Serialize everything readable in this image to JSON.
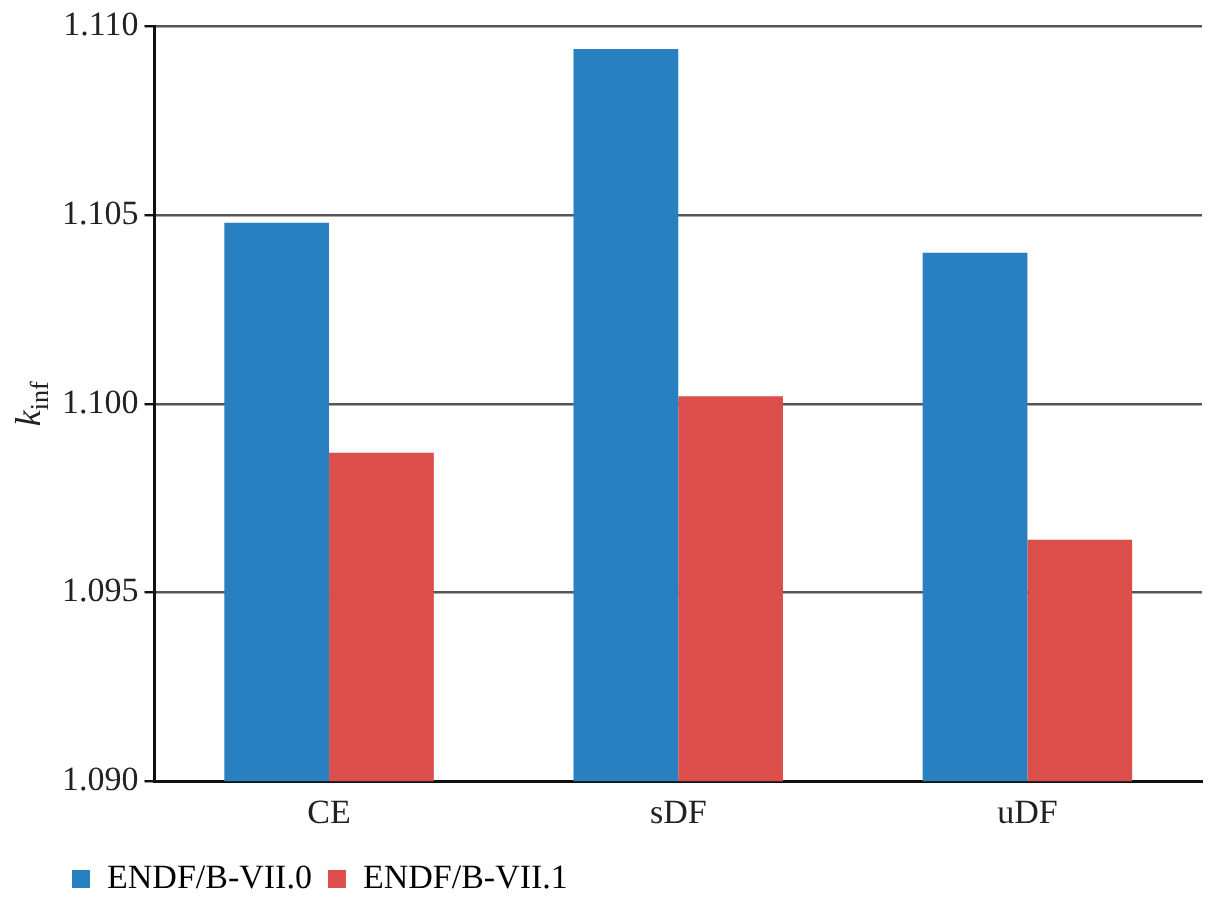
{
  "chart_data": {
    "type": "bar",
    "ylabel": "k$_{inf}$",
    "categories": [
      "CE",
      "sDF",
      "uDF"
    ],
    "series": [
      {
        "name": "ENDF/B-VII.0",
        "color": "#2880c1",
        "values": [
          1.1048,
          1.1094,
          1.104
        ]
      },
      {
        "name": "ENDF/B-VII.1",
        "color": "#dc4e4b",
        "values": [
          1.0987,
          1.1002,
          1.0964
        ]
      }
    ],
    "ylim": [
      1.09,
      1.11
    ],
    "yticks": [
      {
        "value": 1.09,
        "label": "1.090"
      },
      {
        "value": 1.095,
        "label": "1.095"
      },
      {
        "value": 1.1,
        "label": "1.100"
      },
      {
        "value": 1.105,
        "label": "1.105"
      },
      {
        "value": 1.11,
        "label": "1.110"
      }
    ],
    "grid": "y",
    "legend": "bottom left"
  }
}
